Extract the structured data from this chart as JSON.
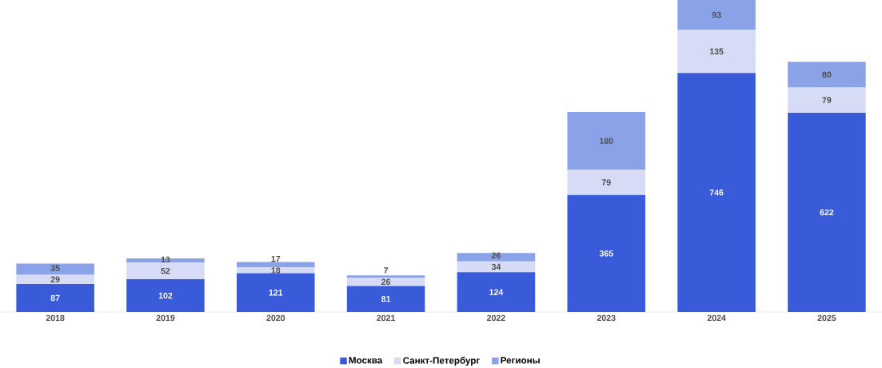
{
  "chart_data": {
    "type": "bar",
    "stacked": true,
    "data_labels": true,
    "legend": "bottom",
    "categories": [
      "2018",
      "2019",
      "2020",
      "2021",
      "2022",
      "2023",
      "2024",
      "2025"
    ],
    "series": [
      {
        "name": "Москва",
        "color": "#3a5bd9",
        "values": [
          87,
          102,
          121,
          81,
          124,
          365,
          746,
          622
        ]
      },
      {
        "name": "Санкт-Петербург",
        "color": "#d6dcf5",
        "values": [
          29,
          52,
          18,
          26,
          34,
          79,
          135,
          79
        ]
      },
      {
        "name": "Регионы",
        "color": "#8aa2e8",
        "values": [
          35,
          13,
          17,
          7,
          26,
          180,
          93,
          80
        ]
      }
    ]
  }
}
